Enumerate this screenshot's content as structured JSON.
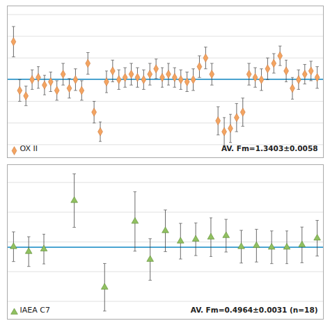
{
  "chart_data": [
    {
      "type": "scatter",
      "x": [
        1,
        2,
        3,
        4,
        5,
        6,
        7,
        8,
        9,
        10,
        11,
        12,
        13,
        14,
        15,
        16,
        17,
        18,
        19,
        20,
        21,
        22,
        23,
        24,
        25,
        26,
        27,
        28,
        29,
        30,
        31,
        32,
        33,
        34,
        35,
        36,
        37,
        38,
        39,
        40,
        41,
        42,
        43,
        44,
        45,
        46,
        47,
        48,
        49,
        50
      ],
      "series": [
        {
          "name": "OX II",
          "color": "#F4A460",
          "edge_color": "#C87941",
          "marker": "diamond",
          "values": [
            1.375,
            1.33,
            1.325,
            1.34,
            1.342,
            1.335,
            1.338,
            1.33,
            1.345,
            1.332,
            1.34,
            1.33,
            1.355,
            1.31,
            1.292,
            1.338,
            1.348,
            1.34,
            1.342,
            1.345,
            1.342,
            1.34,
            1.345,
            1.35,
            1.342,
            1.345,
            1.342,
            1.34,
            1.338,
            1.34,
            1.352,
            1.36,
            1.345,
            1.302,
            1.292,
            1.295,
            1.305,
            1.31,
            1.345,
            1.342,
            1.34,
            1.35,
            1.355,
            1.362,
            1.348,
            1.332,
            1.34,
            1.345,
            1.348,
            1.342
          ],
          "errors": [
            0.014,
            0.01,
            0.009,
            0.009,
            0.01,
            0.009,
            0.009,
            0.009,
            0.01,
            0.009,
            0.01,
            0.009,
            0.01,
            0.01,
            0.009,
            0.01,
            0.01,
            0.009,
            0.009,
            0.01,
            0.009,
            0.009,
            0.01,
            0.009,
            0.009,
            0.01,
            0.009,
            0.009,
            0.009,
            0.01,
            0.01,
            0.01,
            0.01,
            0.013,
            0.013,
            0.013,
            0.013,
            0.013,
            0.01,
            0.009,
            0.01,
            0.01,
            0.009,
            0.009,
            0.01,
            0.01,
            0.009,
            0.009,
            0.009,
            0.01
          ]
        }
      ],
      "reference_lines": [
        {
          "value": 1.3403,
          "color": "#3399CC"
        }
      ],
      "annotations": [
        "AV. Fm=1.3403±0.0058"
      ],
      "xlim": [
        0,
        51
      ],
      "ylim": [
        1.268,
        1.408
      ],
      "yticks": [
        1.28,
        1.3,
        1.32,
        1.34,
        1.36,
        1.38,
        1.4
      ],
      "grid": true,
      "tick_labels": false,
      "legend": "lower left"
    },
    {
      "type": "scatter",
      "x": [
        1,
        3.45,
        5.9,
        10.8,
        15.7,
        20.6,
        23.05,
        25.5,
        27.95,
        30.4,
        32.85,
        35.3,
        37.75,
        40.2,
        42.65,
        45.1,
        47.55,
        50
      ],
      "series": [
        {
          "name": "IAEA C7",
          "color": "#90C060",
          "edge_color": "#5A8A30",
          "marker": "triangle",
          "values": [
            0.4968,
            0.4935,
            0.4952,
            0.5278,
            0.4695,
            0.5138,
            0.4882,
            0.5075,
            0.5005,
            0.5018,
            0.5032,
            0.5042,
            0.4968,
            0.4975,
            0.4964,
            0.4964,
            0.498,
            0.5025
          ],
          "errors": [
            0.01,
            0.01,
            0.01,
            0.018,
            0.016,
            0.02,
            0.014,
            0.014,
            0.012,
            0.011,
            0.013,
            0.011,
            0.011,
            0.011,
            0.011,
            0.011,
            0.012,
            0.012
          ]
        }
      ],
      "reference_lines": [
        {
          "value": 0.4964,
          "color": "#3399CC"
        }
      ],
      "annotations": [
        "AV. Fm=0.4964±0.0031 (n=18)"
      ],
      "xlim": [
        0,
        51
      ],
      "ylim": [
        0.448,
        0.552
      ],
      "yticks": [
        0.46,
        0.48,
        0.5,
        0.52,
        0.54
      ],
      "grid": true,
      "tick_labels": false,
      "legend": "lower left"
    }
  ]
}
